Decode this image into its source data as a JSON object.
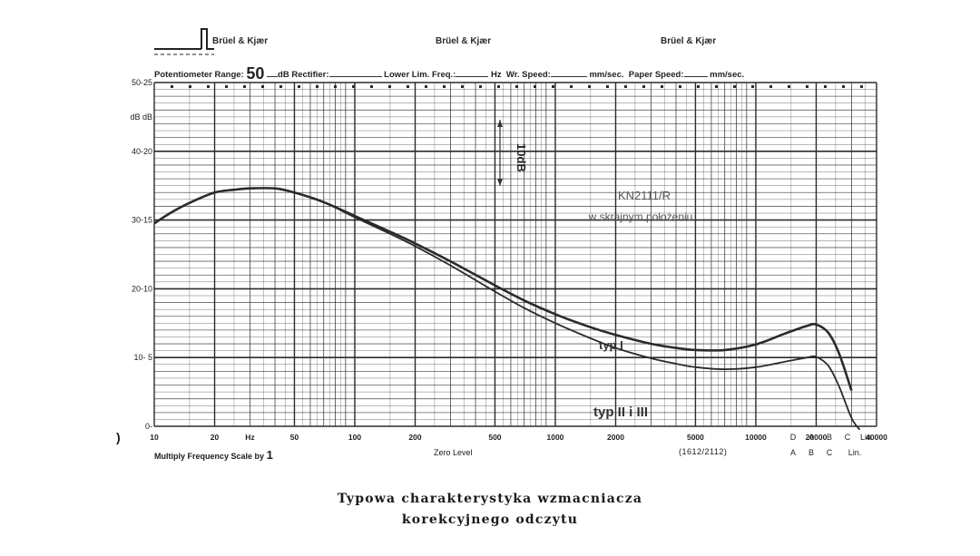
{
  "header": {
    "brand_left": "Brüel & Kjær",
    "brand_center": "Brüel & Kjær",
    "brand_right": "Brüel & Kjær",
    "potentiometer_label": "Potentiometer Range:",
    "potentiometer_value": "50",
    "db_label": "dB",
    "rectifier_label": "Rectifier:",
    "lower_lim_label": "Lower Lim. Freq.:",
    "hz_label": "Hz",
    "wr_speed_label": "Wr. Speed:",
    "wr_speed_unit": "mm/sec.",
    "paper_speed_label": "Paper Speed:",
    "paper_speed_unit": "mm/sec."
  },
  "footer": {
    "multiply_label": "Multiply Frequency Scale by",
    "multiply_value": "1",
    "zero_level": "Zero Level",
    "model": "(1612/2112)",
    "mark_left": ")"
  },
  "caption": {
    "line1": "Typowa charakterystyka wzmacniacza",
    "line2": "korekcyjnego odczytu"
  },
  "colors": {
    "grid": "#2b2b2b",
    "curve": "#2a2a2a",
    "paper": "#ffffff"
  },
  "chart_data": {
    "type": "line",
    "x_scale": "log",
    "xlim": [
      10,
      40000
    ],
    "ylim": [
      0,
      50
    ],
    "grid": true,
    "x_ticks": [
      {
        "v": 10,
        "label": "10"
      },
      {
        "v": 20,
        "label": "20"
      },
      {
        "v": 30,
        "label": "Hz"
      },
      {
        "v": 50,
        "label": "50"
      },
      {
        "v": 100,
        "label": "100"
      },
      {
        "v": 200,
        "label": "200"
      },
      {
        "v": 500,
        "label": "500"
      },
      {
        "v": 1000,
        "label": "1000"
      },
      {
        "v": 2000,
        "label": "2000"
      },
      {
        "v": 5000,
        "label": "5000"
      },
      {
        "v": 10000,
        "label": "10000"
      },
      {
        "v": 20000,
        "label": "20000"
      },
      {
        "v": 40000,
        "label": "40000"
      }
    ],
    "y_ticks": [
      {
        "v": 50,
        "label": "50-25"
      },
      {
        "v": 40,
        "label": "40-20"
      },
      {
        "v": 30,
        "label": "30-15"
      },
      {
        "v": 20,
        "label": "20-10"
      },
      {
        "v": 10,
        "label": "10- 5"
      },
      {
        "v": 0,
        "label": "0-"
      }
    ],
    "y_unit_label": "dB dB",
    "weighting_top": [
      "D",
      "A",
      "B",
      "C",
      "Lin"
    ],
    "weighting_bottom": [
      "A",
      "B",
      "C",
      "Lin."
    ],
    "annotations": {
      "scale_bar": "10dB",
      "title_a": "KN2111/R",
      "title_b": "w skrajnym położeniu",
      "label_typ1": "typ I",
      "label_typ23": "typ II i III"
    },
    "series": [
      {
        "name": "typ I",
        "x": [
          10,
          12,
          15,
          20,
          25,
          30,
          40,
          50,
          70,
          100,
          150,
          200,
          300,
          500,
          700,
          1000,
          1500,
          2000,
          3000,
          4000,
          5000,
          7000,
          10000,
          14000,
          18000,
          20000,
          23000,
          26000,
          30000
        ],
        "y": [
          29.5,
          31.0,
          32.5,
          34.0,
          34.4,
          34.6,
          34.6,
          34.0,
          32.6,
          30.6,
          28.3,
          26.6,
          24.0,
          20.5,
          18.3,
          16.3,
          14.4,
          13.3,
          12.0,
          11.4,
          11.1,
          11.1,
          11.9,
          13.5,
          14.6,
          14.8,
          13.6,
          10.6,
          5.2
        ]
      },
      {
        "name": "typ II i III",
        "x": [
          10,
          12,
          15,
          20,
          25,
          30,
          40,
          50,
          70,
          100,
          150,
          200,
          300,
          500,
          700,
          1000,
          1500,
          2000,
          3000,
          4000,
          5000,
          7000,
          10000,
          14000,
          18000,
          20000,
          23000,
          26000,
          30000,
          33000
        ],
        "y": [
          29.5,
          31.0,
          32.5,
          34.0,
          34.4,
          34.6,
          34.6,
          34.0,
          32.6,
          30.4,
          28.0,
          26.2,
          23.4,
          19.6,
          17.2,
          15.0,
          12.8,
          11.4,
          9.9,
          9.1,
          8.6,
          8.3,
          8.6,
          9.4,
          10.0,
          10.1,
          8.8,
          5.8,
          1.2,
          -0.5
        ]
      }
    ]
  }
}
